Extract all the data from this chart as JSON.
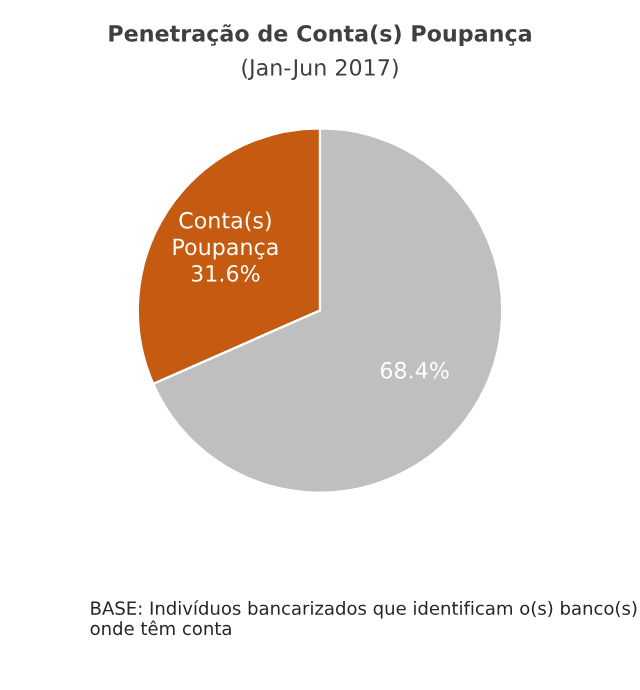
{
  "chart_data": {
    "type": "pie",
    "title": "Penetração de Conta(s) Poupança",
    "subtitle": "(Jan-Jun 2017)",
    "categories": [
      "Conta(s) Poupança",
      null
    ],
    "values": [
      31.6,
      68.4
    ],
    "value_labels": [
      "31.6%",
      "68.4%"
    ],
    "colors": [
      "#c55a11",
      "#bfbfbf"
    ],
    "legend": false,
    "annotations": [
      "BASE: Indivíduos bancarizados que identificam o(s) banco(s) onde têm conta"
    ]
  }
}
